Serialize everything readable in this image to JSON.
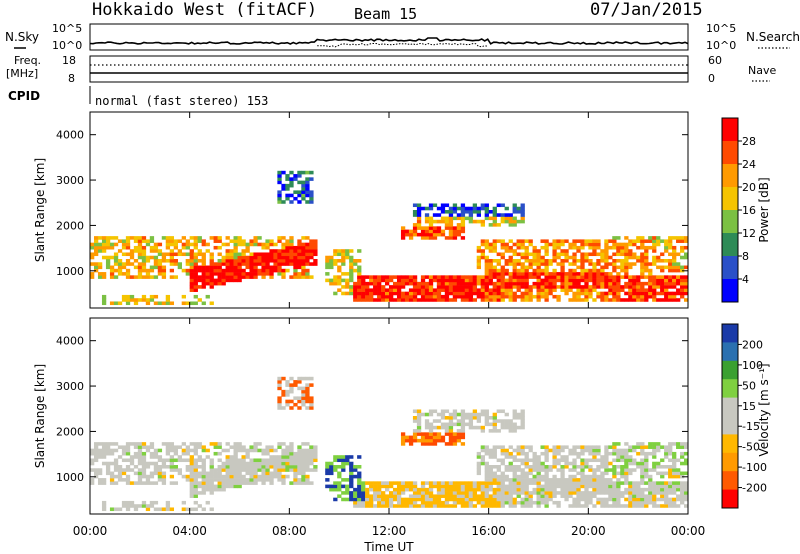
{
  "header": {
    "station": "Hokkaido West (fitACF)",
    "beam": "Beam 15",
    "date": "07/Jan/2015"
  },
  "noise_panel": {
    "left_label": "N.Sky",
    "right_label": "N.Search",
    "ticks": [
      "10^5",
      "10^0"
    ]
  },
  "freq_panel": {
    "left_label_top": "Freq.",
    "left_label_unit": "[MHz]",
    "left_ticks": [
      "18",
      "8"
    ],
    "right_label": "Nave",
    "right_ticks": [
      "60",
      "0"
    ]
  },
  "cpid": {
    "label": "CPID",
    "value": "normal (fast stereo) 153"
  },
  "chart_data": [
    {
      "type": "heatmap",
      "name": "power",
      "ylabel": "Slant Range [km]",
      "yticks": [
        "4000",
        "3000",
        "2000",
        "1000"
      ],
      "ylim": [
        180,
        4500
      ],
      "xlabel": "",
      "xlim": [
        0,
        24
      ],
      "colorbar": {
        "label": "Power [dB]",
        "ticks": [
          "28",
          "24",
          "20",
          "16",
          "12",
          "8",
          "4"
        ],
        "colors": [
          "#0000ff",
          "#2a50c8",
          "#2e8b57",
          "#7bc043",
          "#f5c400",
          "#ff9a00",
          "#ff4a00",
          "#ff0000"
        ]
      }
    },
    {
      "type": "heatmap",
      "name": "velocity",
      "ylabel": "Slant Range [km]",
      "yticks": [
        "4000",
        "3000",
        "2000",
        "1000"
      ],
      "ylim": [
        180,
        4500
      ],
      "xlabel": "Time UT",
      "xlim": [
        0,
        24
      ],
      "xticks": [
        "00:00",
        "04:00",
        "08:00",
        "12:00",
        "16:00",
        "20:00",
        "00:00"
      ],
      "colorbar": {
        "label": "Velocity [m s⁻¹]",
        "ticks": [
          "200",
          "100",
          "50",
          "15",
          "-15",
          "-50",
          "-100",
          "-200"
        ],
        "colors": [
          "#ff0000",
          "#ff5a00",
          "#ff9a00",
          "#ffb800",
          "#c8c8c0",
          "#c8c8c0",
          "#7fd040",
          "#3aa030",
          "#2a70b0",
          "#1a3aa8"
        ]
      }
    }
  ]
}
